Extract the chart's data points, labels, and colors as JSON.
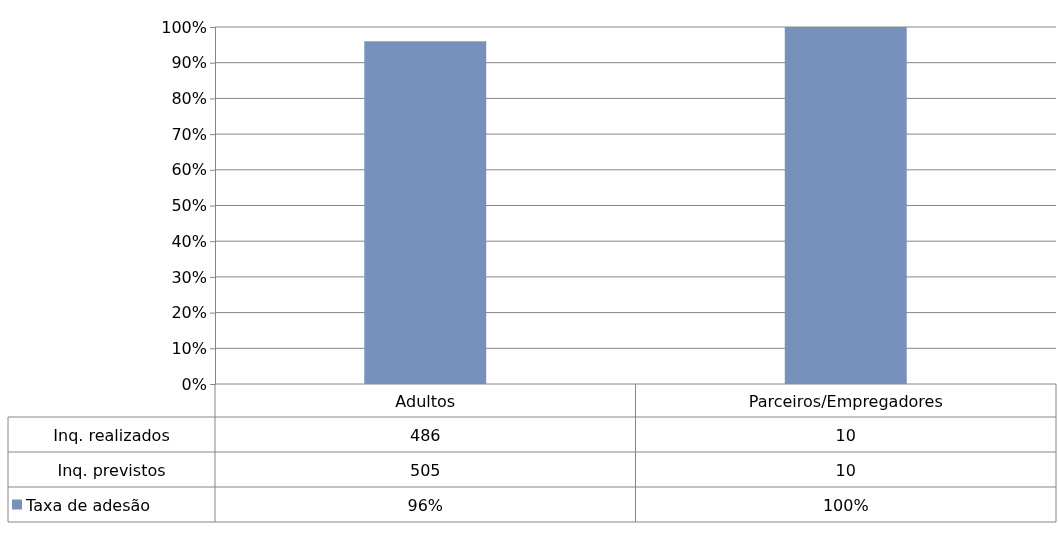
{
  "chart_data": {
    "type": "bar",
    "categories": [
      "Adultos",
      "Parceiros/Empregadores"
    ],
    "series": [
      {
        "name": "Taxa de adesão",
        "color": "#7891bc",
        "values": [
          96,
          100
        ],
        "value_labels": [
          "96%",
          "100%"
        ]
      }
    ],
    "ylim": [
      0,
      100
    ],
    "yticks": [
      {
        "value": 0,
        "label": "0%"
      },
      {
        "value": 10,
        "label": "10%"
      },
      {
        "value": 20,
        "label": "20%"
      },
      {
        "value": 30,
        "label": "30%"
      },
      {
        "value": 40,
        "label": "40%"
      },
      {
        "value": 50,
        "label": "50%"
      },
      {
        "value": 60,
        "label": "60%"
      },
      {
        "value": 70,
        "label": "70%"
      },
      {
        "value": 80,
        "label": "80%"
      },
      {
        "value": 90,
        "label": "90%"
      },
      {
        "value": 100,
        "label": "100%"
      }
    ],
    "grid": "y",
    "legend": "bottom left",
    "annotations": [
      "Inq. realizados",
      "486",
      "10",
      "Inq. previstos",
      "505",
      "10"
    ]
  }
}
